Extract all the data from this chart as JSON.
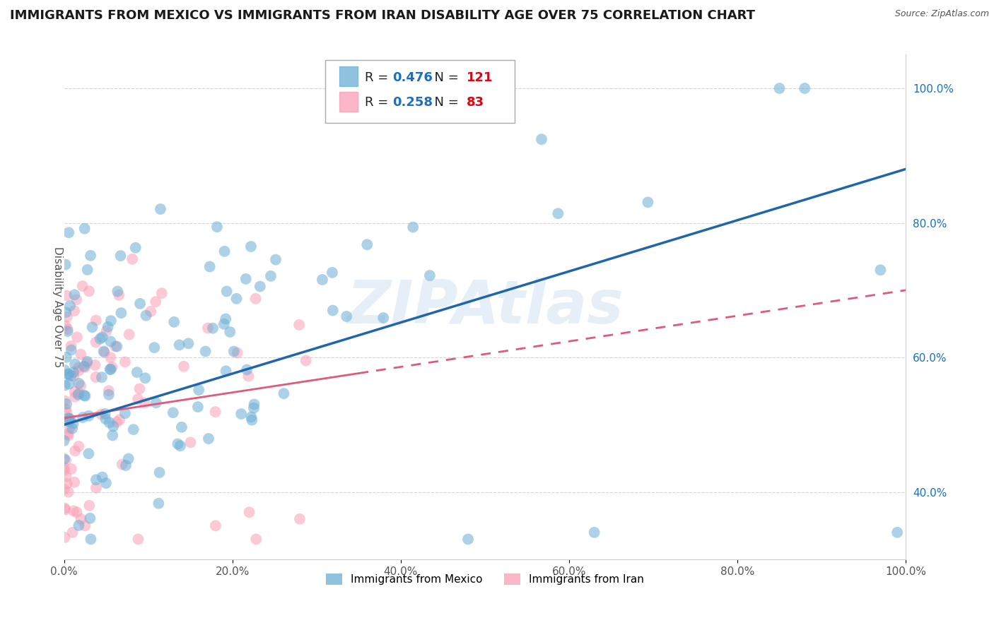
{
  "title": "IMMIGRANTS FROM MEXICO VS IMMIGRANTS FROM IRAN DISABILITY AGE OVER 75 CORRELATION CHART",
  "source": "Source: ZipAtlas.com",
  "ylabel": "Disability Age Over 75",
  "xlim": [
    0,
    1
  ],
  "ylim": [
    0.3,
    1.05
  ],
  "xticks": [
    0,
    0.2,
    0.4,
    0.6,
    0.8,
    1.0
  ],
  "yticks": [
    0.4,
    0.6,
    0.8,
    1.0
  ],
  "xtick_labels": [
    "0.0%",
    "20.0%",
    "40.0%",
    "60.0%",
    "80.0%",
    "100.0%"
  ],
  "ytick_labels": [
    "40.0%",
    "60.0%",
    "80.0%",
    "100.0%"
  ],
  "mexico_color": "#6baed6",
  "iran_color": "#fa9fb5",
  "mexico_line_color": "#2166ac",
  "iran_line_color": "#e05a7a",
  "mexico_R": 0.476,
  "mexico_N": 121,
  "iran_R": 0.258,
  "iran_N": 83,
  "mexico_label": "Immigrants from Mexico",
  "iran_label": "Immigrants from Iran",
  "legend_R_color": "#1a6fbe",
  "legend_N_color": "#e8000d",
  "background_color": "#ffffff",
  "grid_color": "#cccccc",
  "watermark": "ZIPAtlas",
  "title_fontsize": 13,
  "axis_label_fontsize": 11,
  "tick_fontsize": 11,
  "scatter_size": 130,
  "scatter_alpha": 0.55
}
